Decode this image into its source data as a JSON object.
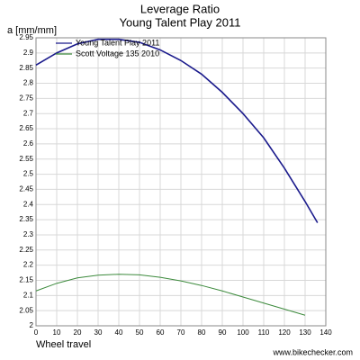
{
  "chart_data": {
    "type": "line",
    "title": "Leverage Ratio",
    "subtitle": "Young Talent Play 2011",
    "y_label": "a [mm/mm]",
    "x_label": "Wheel travel",
    "footer": "www.bikechecker.com",
    "x": [
      0,
      10,
      20,
      30,
      40,
      50,
      60,
      70,
      80,
      90,
      100,
      110,
      120,
      130,
      136
    ],
    "series": [
      {
        "name": "Young Talent Play 2011",
        "color": "#1a1a8c",
        "values": [
          2.86,
          2.9,
          2.93,
          2.945,
          2.945,
          2.935,
          2.91,
          2.875,
          2.83,
          2.77,
          2.7,
          2.62,
          2.52,
          2.41,
          2.34
        ]
      },
      {
        "name": "Scott Voltage 135 2010",
        "color": "#3c8a3c",
        "values": [
          2.115,
          2.14,
          2.158,
          2.167,
          2.17,
          2.168,
          2.16,
          2.148,
          2.133,
          2.115,
          2.095,
          2.075,
          2.055,
          2.035,
          null
        ]
      }
    ],
    "xlim": [
      0,
      140
    ],
    "xticks": [
      0,
      10,
      20,
      30,
      40,
      50,
      60,
      70,
      80,
      90,
      100,
      110,
      120,
      130,
      140
    ],
    "ylim": [
      2,
      2.95
    ],
    "yticks": [
      2,
      2.05,
      2.1,
      2.15,
      2.2,
      2.25,
      2.3,
      2.35,
      2.4,
      2.45,
      2.5,
      2.55,
      2.6,
      2.65,
      2.7,
      2.75,
      2.8,
      2.85,
      2.9,
      2.95
    ],
    "grid": true,
    "legend": "upper-left"
  }
}
